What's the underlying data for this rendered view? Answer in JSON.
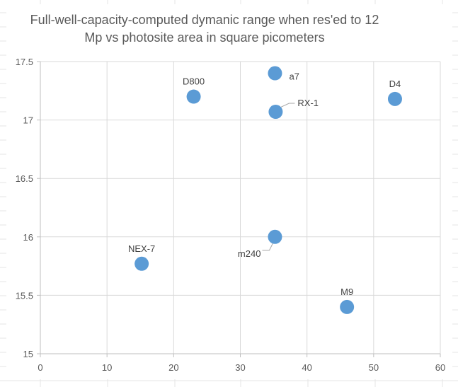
{
  "chart_data": {
    "type": "scatter",
    "title_lines": [
      "Full-well-capacity-computed dymanic range when res'ed to 12",
      "Mp vs photosite area in square picometers"
    ],
    "xlabel": "",
    "ylabel": "",
    "xlim": [
      0,
      60
    ],
    "ylim": [
      15,
      17.5
    ],
    "xticks": [
      0,
      10,
      20,
      30,
      40,
      50,
      60
    ],
    "yticks": [
      15,
      15.5,
      16,
      16.5,
      17,
      17.5
    ],
    "xtick_labels": [
      "0",
      "10",
      "20",
      "30",
      "40",
      "50",
      "60"
    ],
    "ytick_labels": [
      "15",
      "15.5",
      "16",
      "16.5",
      "17",
      "17.5"
    ],
    "grid": true,
    "legend": "none",
    "marker_color": "#5B9BD5",
    "points": [
      {
        "label": "D800",
        "x": 23.0,
        "y": 17.2
      },
      {
        "label": "a7",
        "x": 35.2,
        "y": 17.4
      },
      {
        "label": "RX-1",
        "x": 35.3,
        "y": 17.07
      },
      {
        "label": "D4",
        "x": 53.2,
        "y": 17.18
      },
      {
        "label": "NEX-7",
        "x": 15.2,
        "y": 15.77
      },
      {
        "label": "m240",
        "x": 35.2,
        "y": 16.0
      },
      {
        "label": "M9",
        "x": 46.0,
        "y": 15.4
      }
    ]
  }
}
